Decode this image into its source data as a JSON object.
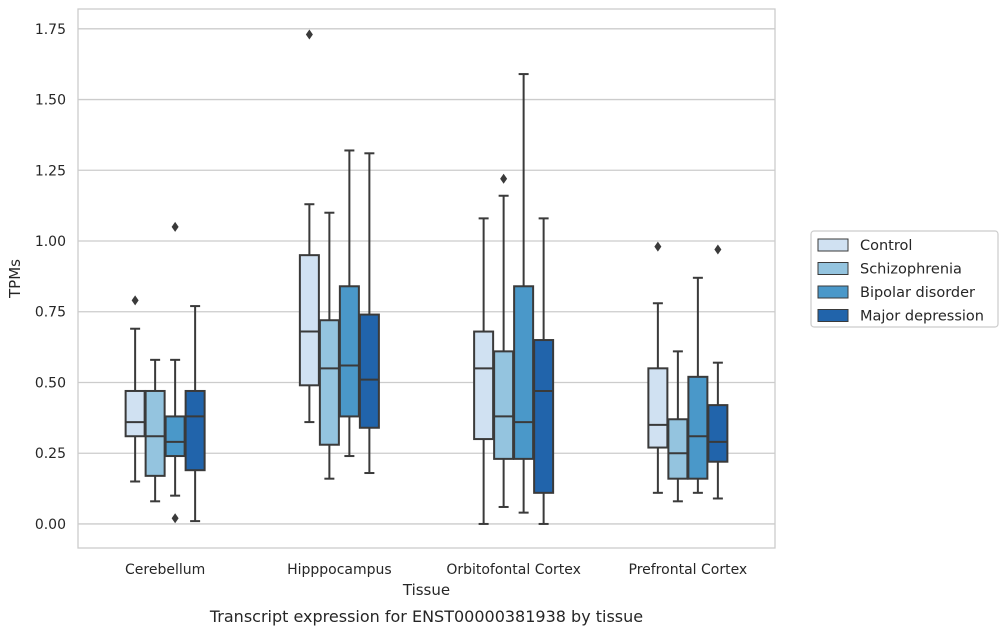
{
  "caption": "Transcript expression for ENST00000381938 by tissue",
  "chart_data": {
    "type": "box",
    "xlabel": "Tissue",
    "ylabel": "TPMs",
    "ylim": [
      -0.085,
      1.82
    ],
    "yticks": [
      "0.00",
      "0.25",
      "0.50",
      "0.75",
      "1.00",
      "1.25",
      "1.50",
      "1.75"
    ],
    "grid": "horizontal",
    "legend_position": "right",
    "categories": [
      "Cerebellum",
      "Hipppocampus",
      "Orbitofontal Cortex",
      "Prefrontal Cortex"
    ],
    "series": [
      {
        "name": "Control",
        "color": "#d0e1f2",
        "boxes": [
          {
            "whisker_low": 0.15,
            "q1": 0.31,
            "median": 0.36,
            "q3": 0.47,
            "whisker_high": 0.69,
            "outliers": [
              0.79
            ]
          },
          {
            "whisker_low": 0.36,
            "q1": 0.49,
            "median": 0.68,
            "q3": 0.95,
            "whisker_high": 1.13,
            "outliers": [
              1.73
            ]
          },
          {
            "whisker_low": 0.0,
            "q1": 0.3,
            "median": 0.55,
            "q3": 0.68,
            "whisker_high": 1.08,
            "outliers": []
          },
          {
            "whisker_low": 0.11,
            "q1": 0.27,
            "median": 0.35,
            "q3": 0.55,
            "whisker_high": 0.78,
            "outliers": [
              0.98
            ]
          }
        ]
      },
      {
        "name": "Schizophrenia",
        "color": "#94c4df",
        "boxes": [
          {
            "whisker_low": 0.08,
            "q1": 0.17,
            "median": 0.31,
            "q3": 0.47,
            "whisker_high": 0.58,
            "outliers": []
          },
          {
            "whisker_low": 0.16,
            "q1": 0.28,
            "median": 0.55,
            "q3": 0.72,
            "whisker_high": 1.1,
            "outliers": []
          },
          {
            "whisker_low": 0.06,
            "q1": 0.23,
            "median": 0.38,
            "q3": 0.61,
            "whisker_high": 1.16,
            "outliers": [
              1.22
            ]
          },
          {
            "whisker_low": 0.08,
            "q1": 0.16,
            "median": 0.25,
            "q3": 0.37,
            "whisker_high": 0.61,
            "outliers": []
          }
        ]
      },
      {
        "name": "Bipolar disorder",
        "color": "#4a98c9",
        "boxes": [
          {
            "whisker_low": 0.1,
            "q1": 0.24,
            "median": 0.29,
            "q3": 0.38,
            "whisker_high": 0.58,
            "outliers": [
              1.05,
              0.02
            ]
          },
          {
            "whisker_low": 0.24,
            "q1": 0.38,
            "median": 0.56,
            "q3": 0.84,
            "whisker_high": 1.32,
            "outliers": []
          },
          {
            "whisker_low": 0.04,
            "q1": 0.23,
            "median": 0.36,
            "q3": 0.84,
            "whisker_high": 1.59,
            "outliers": []
          },
          {
            "whisker_low": 0.11,
            "q1": 0.16,
            "median": 0.31,
            "q3": 0.52,
            "whisker_high": 0.87,
            "outliers": []
          }
        ]
      },
      {
        "name": "Major depression",
        "color": "#2164ab",
        "boxes": [
          {
            "whisker_low": 0.01,
            "q1": 0.19,
            "median": 0.38,
            "q3": 0.47,
            "whisker_high": 0.77,
            "outliers": []
          },
          {
            "whisker_low": 0.18,
            "q1": 0.34,
            "median": 0.51,
            "q3": 0.74,
            "whisker_high": 1.31,
            "outliers": []
          },
          {
            "whisker_low": 0.0,
            "q1": 0.11,
            "median": 0.47,
            "q3": 0.65,
            "whisker_high": 1.08,
            "outliers": []
          },
          {
            "whisker_low": 0.09,
            "q1": 0.22,
            "median": 0.29,
            "q3": 0.42,
            "whisker_high": 0.57,
            "outliers": [
              0.97
            ]
          }
        ]
      }
    ]
  }
}
